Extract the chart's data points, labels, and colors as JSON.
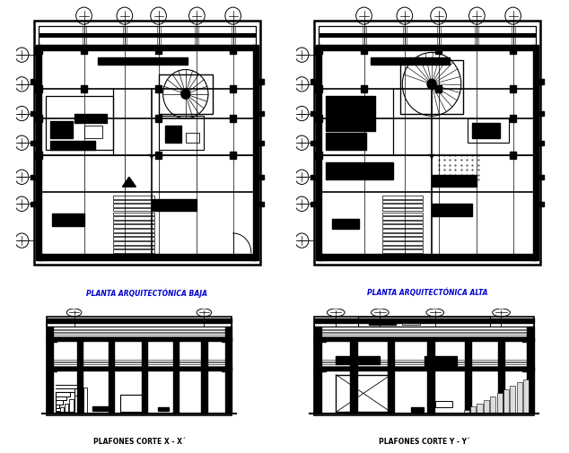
{
  "background_color": "#ffffff",
  "label_top_left": "PLANTA ARQUITECTÓNICA BAJA",
  "label_top_right": "PLANTA ARQUITECTÓNICA ALTA",
  "label_bot_left": "PLAFONES CORTE X - X´",
  "label_bot_right": "PLAFONES CORTE Y - Y´",
  "label_color_top": "#0000cc",
  "label_color_bot": "#000000",
  "line_color": "#000000",
  "figsize": [
    6.34,
    5.06
  ],
  "dpi": 100
}
